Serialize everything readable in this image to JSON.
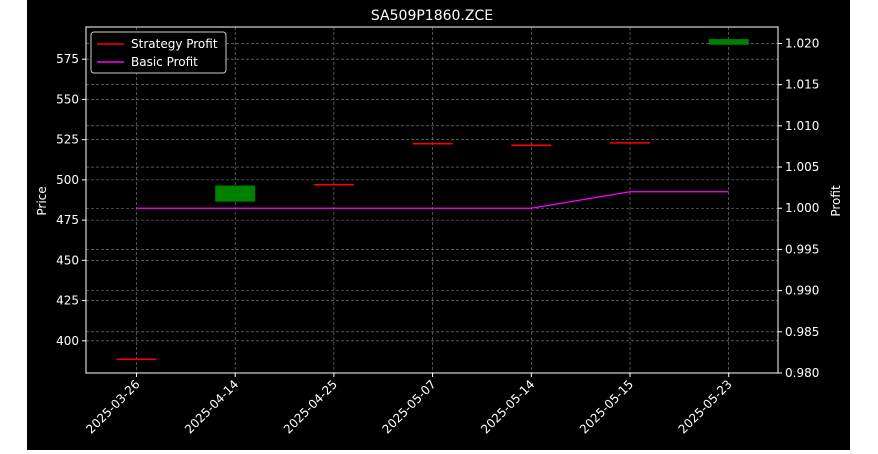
{
  "chart_data": {
    "type": "candlestick",
    "title": "SA509P1860.ZCE",
    "xlabel": "",
    "ylabel_left": "Price",
    "ylabel_right": "Profit",
    "x_categories": [
      "2025-03-26",
      "2025-04-14",
      "2025-04-25",
      "2025-05-07",
      "2025-05-14",
      "2025-05-15",
      "2025-05-23"
    ],
    "y_left": {
      "lim": [
        380,
        595
      ],
      "ticks": [
        400,
        425,
        450,
        475,
        500,
        525,
        550,
        575
      ]
    },
    "y_right": {
      "lim": [
        0.98,
        1.022
      ],
      "ticks": [
        0.98,
        0.985,
        0.99,
        0.995,
        1.0,
        1.005,
        1.01,
        1.015,
        1.02
      ]
    },
    "grid": true,
    "legend_position": "top-left",
    "candles": [
      {
        "date": "2025-03-26",
        "open": 388.5,
        "close": 388.5,
        "direction": "down"
      },
      {
        "date": "2025-04-14",
        "open": 486.5,
        "close": 496.5,
        "direction": "up"
      },
      {
        "date": "2025-04-25",
        "open": 497.0,
        "close": 497.0,
        "direction": "down"
      },
      {
        "date": "2025-05-07",
        "open": 523.0,
        "close": 522.0,
        "direction": "down"
      },
      {
        "date": "2025-05-14",
        "open": 522.0,
        "close": 521.0,
        "direction": "down"
      },
      {
        "date": "2025-05-15",
        "open": 523.0,
        "close": 523.0,
        "direction": "down"
      },
      {
        "date": "2025-05-23",
        "open": 584.0,
        "close": 587.5,
        "direction": "up"
      }
    ],
    "series": [
      {
        "name": "Strategy Profit",
        "axis": "right",
        "color": "#ff0000",
        "values": []
      },
      {
        "name": "Basic Profit",
        "axis": "right",
        "color": "#ff00ff",
        "values": [
          1.0,
          1.0,
          1.0,
          1.0,
          1.0,
          1.002,
          1.002
        ]
      }
    ],
    "colors": {
      "background": "#000000",
      "up": "#008000",
      "down": "#ff0000",
      "grid": "#888888",
      "axis": "#ffffff"
    }
  }
}
